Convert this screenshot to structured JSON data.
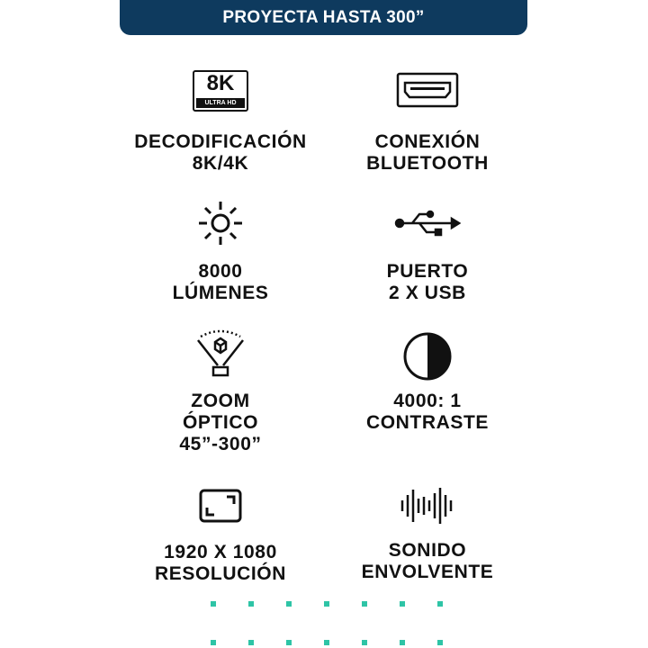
{
  "banner": {
    "title": "PROYECTA HASTA 300”"
  },
  "features": [
    {
      "icon": "8k-ultra-hd-icon",
      "icon_text": [
        "8K",
        "ULTRA HD"
      ],
      "lines": [
        "DECODIFICACIÓN",
        "8K/4K"
      ]
    },
    {
      "icon": "hdmi-port-icon",
      "lines": [
        "CONEXIÓN",
        "BLUETOOTH"
      ]
    },
    {
      "icon": "brightness-sun-icon",
      "lines": [
        "8000",
        "LÚMENES"
      ]
    },
    {
      "icon": "usb-icon",
      "lines": [
        "PUERTO",
        "2 X USB"
      ]
    },
    {
      "icon": "projection-zoom-icon",
      "lines": [
        "ZOOM",
        "ÓPTICO",
        "45”-300”"
      ]
    },
    {
      "icon": "contrast-icon",
      "lines": [
        "4000: 1",
        "CONTRASTE"
      ]
    },
    {
      "icon": "screen-resolution-icon",
      "lines": [
        "1920 X 1080",
        "RESOLUCIÓN"
      ]
    },
    {
      "icon": "sound-wave-icon",
      "lines": [
        "SONIDO",
        "ENVOLVENTE"
      ]
    }
  ],
  "colors": {
    "banner": "#0e3a5e",
    "accent_dots": "#2ec4a6",
    "text": "#111111"
  }
}
